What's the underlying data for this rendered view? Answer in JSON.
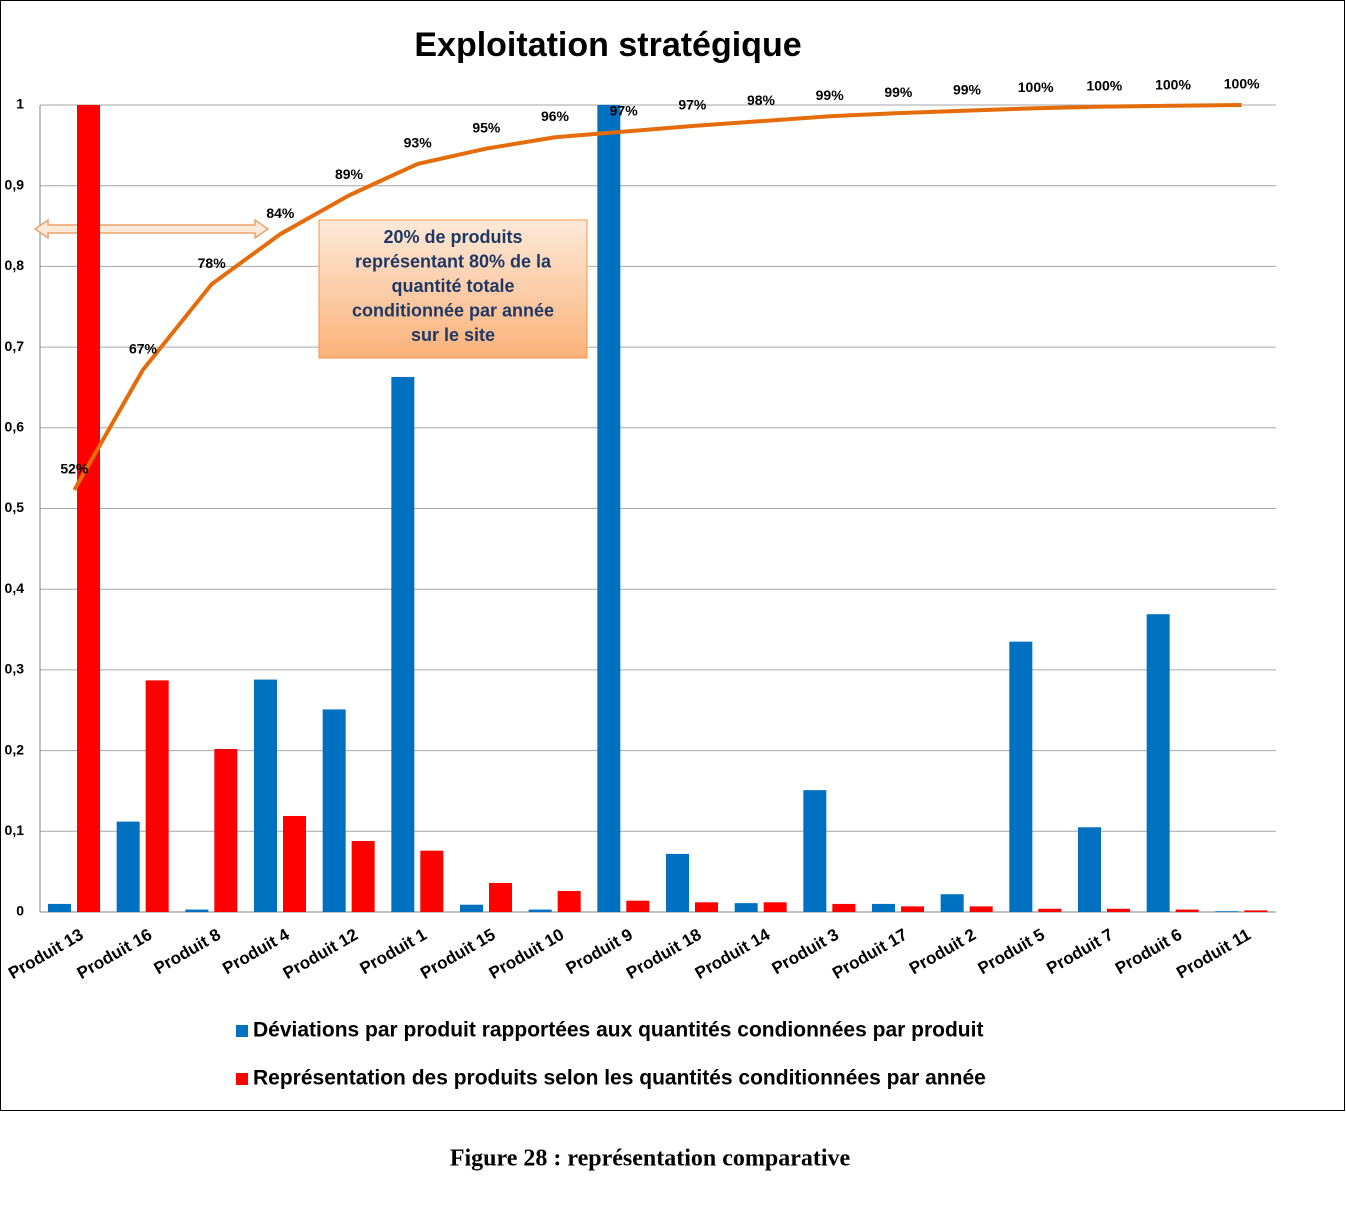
{
  "chart_data": {
    "type": "bar",
    "title": "Exploitation stratégique",
    "categories": [
      "Produit 13",
      "Produit 16",
      "Produit 8",
      "Produit 4",
      "Produit 12",
      "Produit 1",
      "Produit 15",
      "Produit 10",
      "Produit 9",
      "Produit 18",
      "Produit 14",
      "Produit 3",
      "Produit 17",
      "Produit 2",
      "Produit 5",
      "Produit 7",
      "Produit 6",
      "Produit 11"
    ],
    "series": [
      {
        "name": "Déviations par produit rapportées aux quantités condionnées  par produit",
        "type": "bar",
        "color": "#0070c0",
        "values": [
          0.01,
          0.112,
          0.003,
          0.288,
          0.251,
          0.663,
          0.009,
          0.003,
          1.0,
          0.072,
          0.011,
          0.151,
          0.01,
          0.022,
          0.335,
          0.105,
          0.369,
          0.001
        ]
      },
      {
        "name": "Représentation des produits selon les quantités conditionnées par année",
        "type": "bar",
        "color": "#ff0000",
        "values": [
          1.0,
          0.287,
          0.202,
          0.119,
          0.088,
          0.076,
          0.036,
          0.026,
          0.014,
          0.012,
          0.012,
          0.01,
          0.007,
          0.007,
          0.004,
          0.004,
          0.003,
          0.002
        ]
      },
      {
        "type": "line",
        "color": "#e46c0a",
        "values": [
          0.523,
          0.672,
          0.778,
          0.84,
          0.888,
          0.927,
          0.946,
          0.96,
          0.967,
          0.974,
          0.98,
          0.986,
          0.99,
          0.993,
          0.996,
          0.998,
          0.999,
          1.0
        ],
        "value_labels": [
          "52%",
          "67%",
          "78%",
          "84%",
          "89%",
          "93%",
          "95%",
          "96%",
          "97%",
          "97%",
          "98%",
          "99%",
          "99%",
          "99%",
          "100%",
          "100%",
          "100%",
          "100%"
        ]
      }
    ],
    "ylim": [
      0,
      1
    ],
    "yticks": [
      0,
      {
        "value": 0.1,
        "label": "0,1"
      },
      {
        "value": 0.2,
        "label": "0,2"
      },
      {
        "value": 0.3,
        "label": "0,3"
      },
      {
        "value": 0.4,
        "label": "0,4"
      },
      {
        "value": 0.5,
        "label": "0,5"
      },
      {
        "value": 0.6,
        "label": "0,6"
      },
      {
        "value": 0.7,
        "label": "0,7"
      },
      {
        "value": 0.8,
        "label": "0,8"
      },
      {
        "value": 0.9,
        "label": "0,9"
      },
      1
    ],
    "grid": true,
    "annotation": [
      "20% de produits",
      "représentant  80% de la",
      "quantité totale",
      "conditionnée  par année",
      "sur le site"
    ],
    "caption": "Figure 28 : représentation comparative"
  }
}
